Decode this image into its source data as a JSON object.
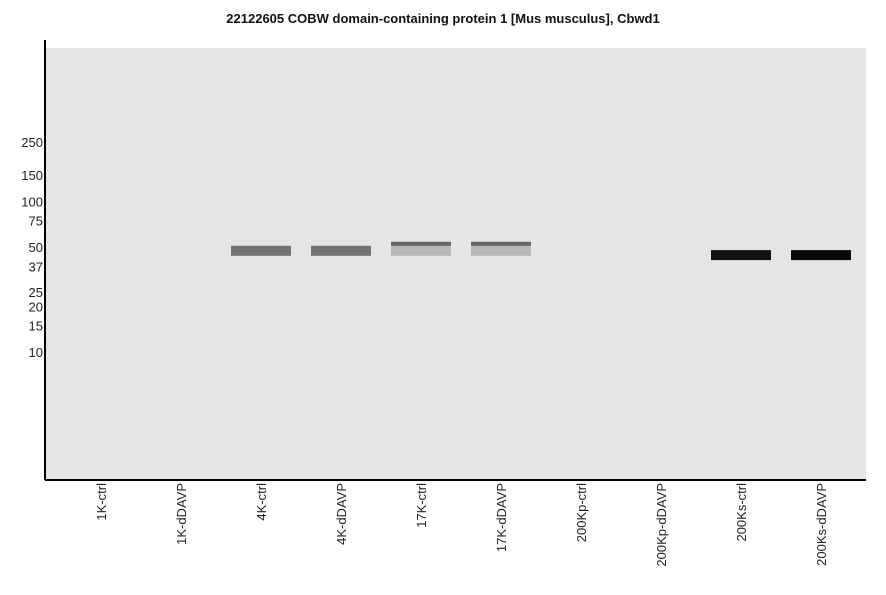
{
  "chart_data": {
    "type": "western-blot",
    "title": "22122605 COBW domain-containing protein 1 [Mus musculus], Cbwd1",
    "y_axis_scale": "log",
    "y_ticks": [
      250,
      150,
      100,
      75,
      50,
      37,
      25,
      20,
      15,
      10
    ],
    "lanes": [
      "1K-ctrl",
      "1K-dDAVP",
      "4K-ctrl",
      "4K-dDAVP",
      "17K-ctrl",
      "17K-dDAVP",
      "200Kp-ctrl",
      "200Kp-dDAVP",
      "200Ks-ctrl",
      "200Ks-dDAVP"
    ],
    "bands": [
      {
        "lane": "4K-ctrl",
        "mw_kDa": 47,
        "intensity": 0.55
      },
      {
        "lane": "4K-dDAVP",
        "mw_kDa": 47,
        "intensity": 0.55
      },
      {
        "lane": "17K-ctrl",
        "mw_kDa": 50,
        "intensity": 0.6
      },
      {
        "lane": "17K-ctrl",
        "mw_kDa": 47,
        "intensity": 0.28
      },
      {
        "lane": "17K-dDAVP",
        "mw_kDa": 50,
        "intensity": 0.6
      },
      {
        "lane": "17K-dDAVP",
        "mw_kDa": 47,
        "intensity": 0.28
      },
      {
        "lane": "200Ks-ctrl",
        "mw_kDa": 44,
        "intensity": 0.93
      },
      {
        "lane": "200Ks-dDAVP",
        "mw_kDa": 44,
        "intensity": 0.97
      }
    ],
    "grid": false
  },
  "colors": {
    "background": "#e4e5e4",
    "axis": "#000000"
  }
}
